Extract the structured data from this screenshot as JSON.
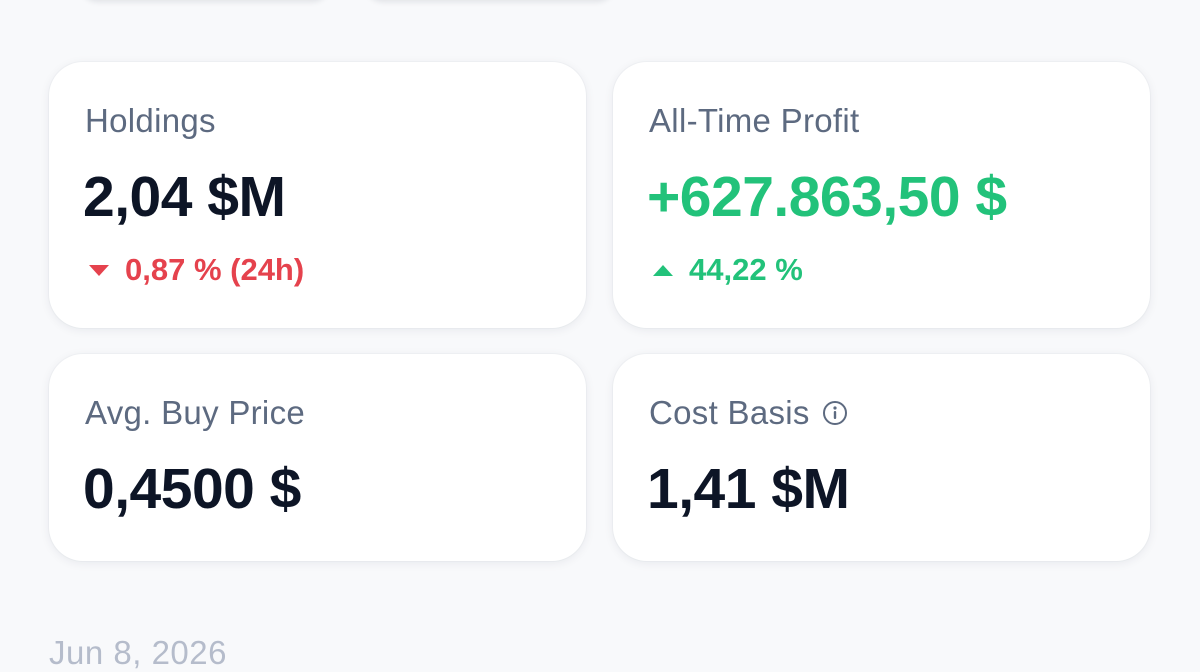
{
  "cards": {
    "holdings": {
      "label": "Holdings",
      "value": "2,04 $M",
      "change": "0,87 % (24h)",
      "change_direction": "down",
      "change_color": "#e5424d"
    },
    "profit": {
      "label": "All-Time Profit",
      "value": "+627.863,50 $",
      "value_color": "#22c27a",
      "change": "44,22 %",
      "change_direction": "up",
      "change_color": "#22c27a"
    },
    "avg_buy": {
      "label": "Avg. Buy Price",
      "value": "0,4500 $"
    },
    "cost_basis": {
      "label": "Cost Basis",
      "value": "1,41 $M",
      "icon": "info-icon"
    }
  },
  "footer": {
    "date": "Jun 8, 2026"
  }
}
